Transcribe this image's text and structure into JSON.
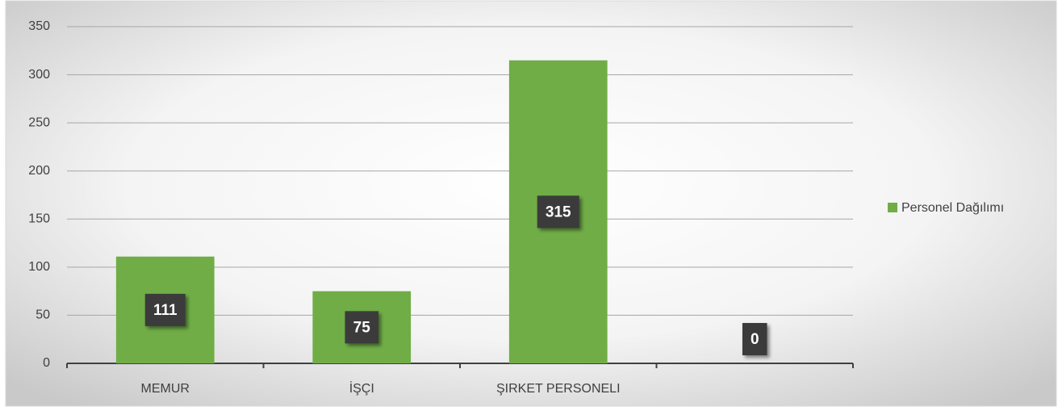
{
  "chart_data": {
    "type": "bar",
    "categories": [
      "MEMUR",
      "İŞÇI",
      "ŞIRKET PERSONELI",
      null
    ],
    "series": [
      {
        "name": "Personel Dağılımı",
        "color": "#70ad47",
        "values": [
          111,
          75,
          315,
          0
        ]
      }
    ],
    "ylim": [
      0,
      350
    ],
    "yticks": [
      0,
      50,
      100,
      150,
      200,
      250,
      300,
      350
    ],
    "grid": true,
    "legend": "right"
  }
}
